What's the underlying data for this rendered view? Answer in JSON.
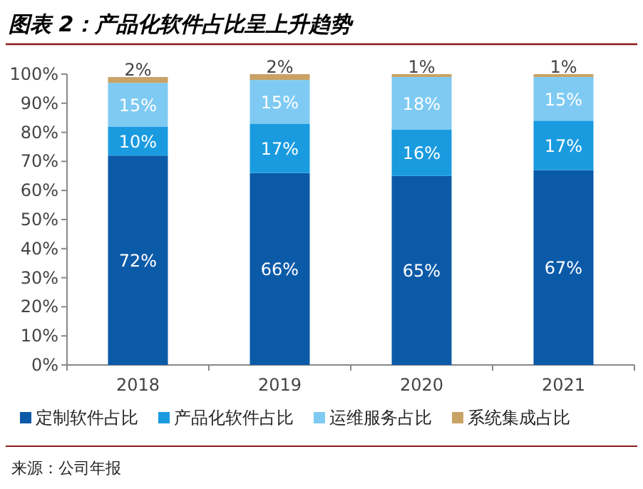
{
  "chart_data": {
    "type": "bar",
    "title": "图表 2：产品化软件占比呈上升趋势",
    "stacked": true,
    "legend": "bottom",
    "categories": [
      "2018",
      "2019",
      "2020",
      "2021"
    ],
    "ylim": [
      0,
      100
    ],
    "yticks": [
      {
        "value": 0,
        "label": "0%"
      },
      {
        "value": 10,
        "label": "10%"
      },
      {
        "value": 20,
        "label": "20%"
      },
      {
        "value": 30,
        "label": "30%"
      },
      {
        "value": 40,
        "label": "40%"
      },
      {
        "value": 50,
        "label": "50%"
      },
      {
        "value": 60,
        "label": "60%"
      },
      {
        "value": 70,
        "label": "70%"
      },
      {
        "value": 80,
        "label": "80%"
      },
      {
        "value": 90,
        "label": "90%"
      },
      {
        "value": 100,
        "label": "100%"
      }
    ],
    "series": [
      {
        "name": "定制软件占比",
        "color": "#0b5aa8",
        "values": [
          72,
          66,
          65,
          67
        ],
        "value_labels": [
          "72%",
          "66%",
          "65%",
          "67%"
        ]
      },
      {
        "name": "产品化软件占比",
        "color": "#1a9be0",
        "values": [
          10,
          17,
          16,
          17
        ],
        "value_labels": [
          "10%",
          "17%",
          "16%",
          "17%"
        ]
      },
      {
        "name": "运维服务占比",
        "color": "#7ecaf2",
        "values": [
          15,
          15,
          18,
          15
        ],
        "value_labels": [
          "15%",
          "15%",
          "18%",
          "15%"
        ]
      },
      {
        "name": "系统集成占比",
        "color": "#c9a266",
        "values": [
          2,
          2,
          1,
          1
        ],
        "value_labels": [
          "2%",
          "2%",
          "1%",
          "1%"
        ]
      }
    ],
    "annotations": [
      "来源：公司年报"
    ]
  }
}
